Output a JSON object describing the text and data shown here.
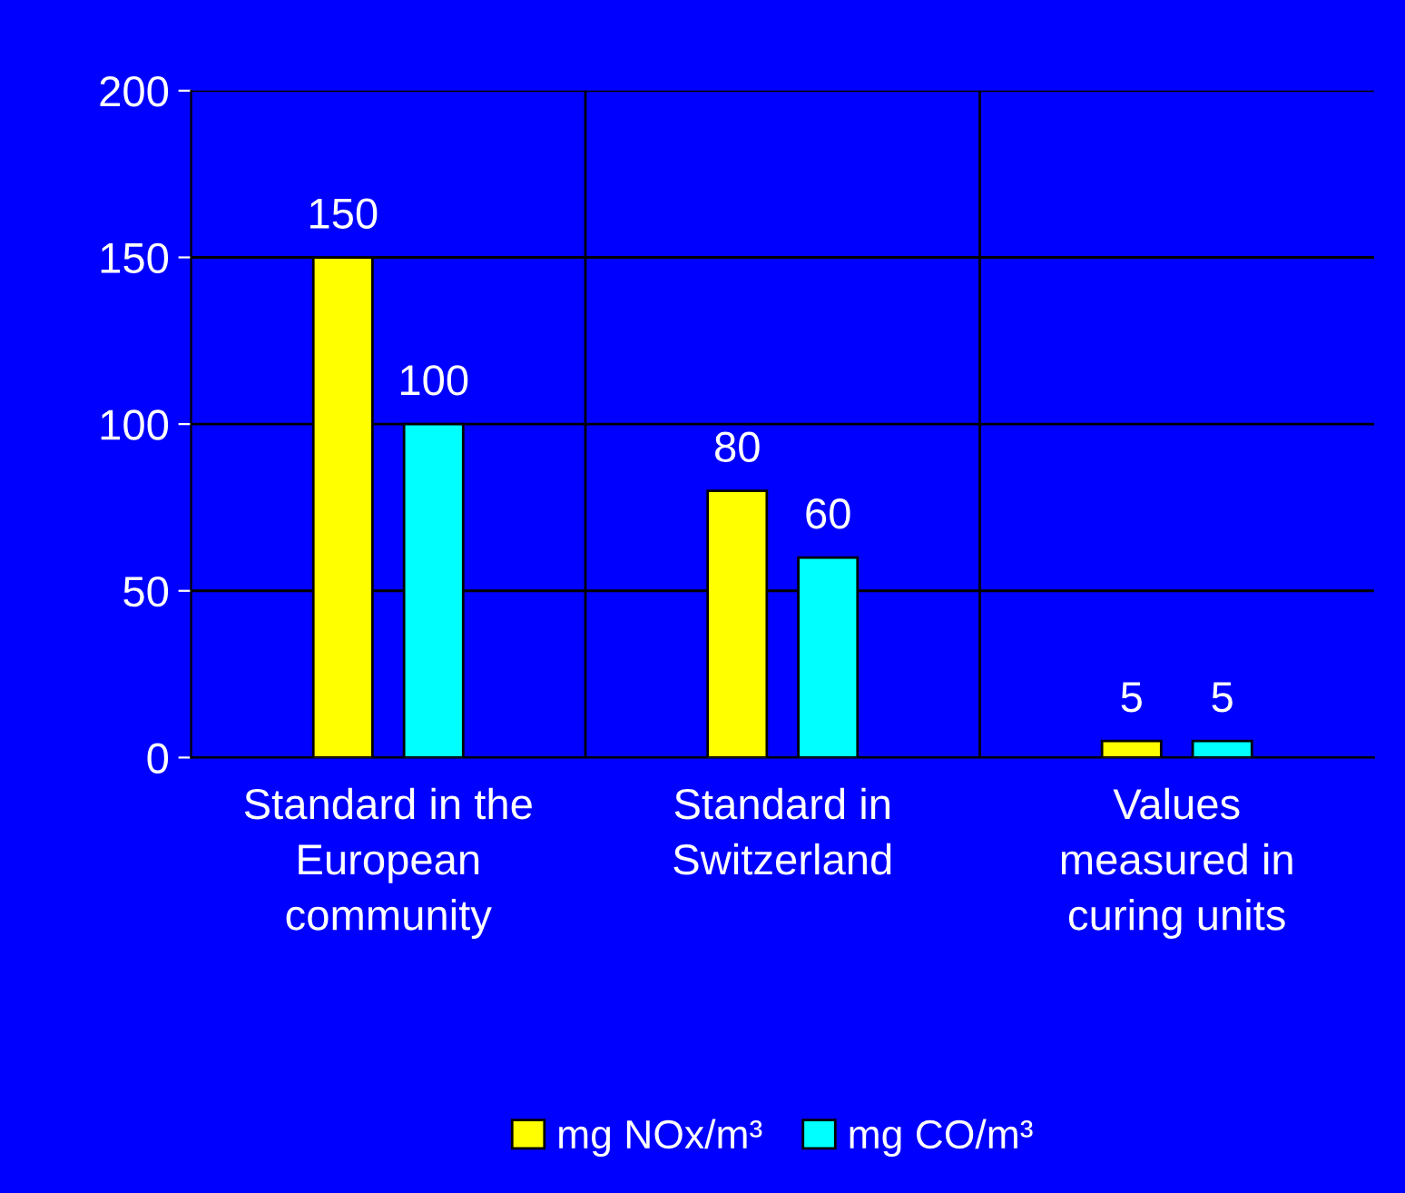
{
  "chart_data": {
    "type": "bar",
    "categories": [
      "Standard in the\nEuropean\ncommunity",
      "Standard in\nSwitzerland",
      "Values\nmeasured in\ncuring units"
    ],
    "series": [
      {
        "name": "mg NOx/m³",
        "color": "#ffff00",
        "values": [
          150,
          80,
          5
        ]
      },
      {
        "name": "mg CO/m³",
        "color": "#00ffff",
        "values": [
          100,
          60,
          5
        ]
      }
    ],
    "ylim": [
      0,
      200
    ],
    "yticks": [
      0,
      50,
      100,
      150,
      200
    ],
    "grid": true,
    "data_labels": true,
    "legend": "bottom"
  }
}
